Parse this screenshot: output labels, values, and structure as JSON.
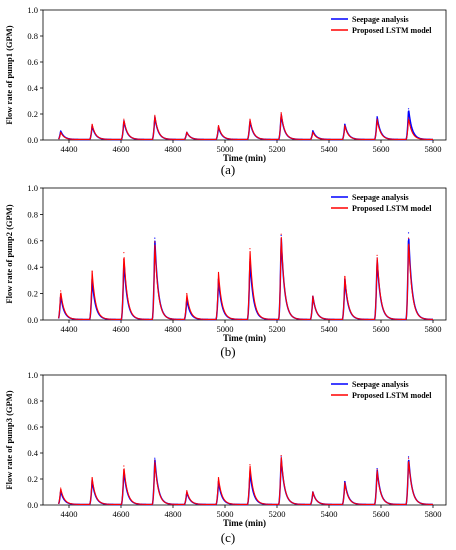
{
  "chart_data": [
    {
      "type": "line",
      "panel": "(a)",
      "xlabel": "Time (min)",
      "ylabel": "Flow rate of pump1 (GPM)",
      "xlim": [
        4300,
        5850
      ],
      "ylim": [
        0,
        1.0
      ],
      "xticks": [
        4400,
        4600,
        4800,
        5000,
        5200,
        5400,
        5600,
        5800
      ],
      "yticks": [
        0.0,
        0.2,
        0.4,
        0.6,
        0.8,
        1.0
      ],
      "legend_position": "top-right",
      "series": [
        {
          "name": "Seepage analysis",
          "color": "#0000ff",
          "x": [
            4368,
            4489,
            4611,
            4730,
            4853,
            4975,
            5096,
            5216,
            5338,
            5461,
            5585,
            5706
          ],
          "peaks": [
            0.07,
            0.11,
            0.15,
            0.18,
            0.06,
            0.1,
            0.15,
            0.2,
            0.07,
            0.12,
            0.18,
            0.24
          ]
        },
        {
          "name": "Proposed LSTM model",
          "color": "#ff0000",
          "x": [
            4368,
            4489,
            4611,
            4730,
            4853,
            4975,
            5096,
            5216,
            5338,
            5461,
            5585,
            5706
          ],
          "peaks": [
            0.06,
            0.12,
            0.16,
            0.19,
            0.06,
            0.11,
            0.16,
            0.21,
            0.06,
            0.11,
            0.16,
            0.17
          ]
        }
      ]
    },
    {
      "type": "line",
      "panel": "(b)",
      "xlabel": "Time (min)",
      "ylabel": "Flow rate of pump2 (GPM)",
      "xlim": [
        4300,
        5850
      ],
      "ylim": [
        0,
        1.0
      ],
      "xticks": [
        4400,
        4600,
        4800,
        5000,
        5200,
        5400,
        5600,
        5800
      ],
      "yticks": [
        0.0,
        0.2,
        0.4,
        0.6,
        0.8,
        1.0
      ],
      "legend_position": "top-right",
      "series": [
        {
          "name": "Seepage analysis",
          "color": "#0000ff",
          "x": [
            4368,
            4489,
            4611,
            4730,
            4853,
            4975,
            5096,
            5216,
            5338,
            5461,
            5585,
            5706
          ],
          "peaks": [
            0.19,
            0.31,
            0.46,
            0.62,
            0.16,
            0.31,
            0.46,
            0.64,
            0.18,
            0.31,
            0.47,
            0.66
          ]
        },
        {
          "name": "Proposed LSTM model",
          "color": "#ff0000",
          "x": [
            4368,
            4489,
            4611,
            4730,
            4853,
            4975,
            5096,
            5216,
            5338,
            5461,
            5585,
            5706
          ],
          "peaks": [
            0.22,
            0.37,
            0.51,
            0.59,
            0.2,
            0.36,
            0.54,
            0.65,
            0.18,
            0.33,
            0.49,
            0.62
          ]
        }
      ]
    },
    {
      "type": "line",
      "panel": "(c)",
      "xlabel": "Time (min)",
      "ylabel": "Flow rate of pump3 (GPM)",
      "xlim": [
        4300,
        5850
      ],
      "ylim": [
        0,
        1.0
      ],
      "xticks": [
        4400,
        4600,
        4800,
        5000,
        5200,
        5400,
        5600,
        5800
      ],
      "yticks": [
        0.0,
        0.2,
        0.4,
        0.6,
        0.8,
        1.0
      ],
      "legend_position": "top-right",
      "series": [
        {
          "name": "Seepage analysis",
          "color": "#0000ff",
          "x": [
            4368,
            4489,
            4611,
            4730,
            4853,
            4975,
            5096,
            5216,
            5338,
            5461,
            5585,
            5706
          ],
          "peaks": [
            0.11,
            0.19,
            0.27,
            0.36,
            0.1,
            0.18,
            0.26,
            0.37,
            0.1,
            0.18,
            0.28,
            0.37
          ]
        },
        {
          "name": "Proposed LSTM model",
          "color": "#ff0000",
          "x": [
            4368,
            4489,
            4611,
            4730,
            4853,
            4975,
            5096,
            5216,
            5338,
            5461,
            5585,
            5706
          ],
          "peaks": [
            0.13,
            0.21,
            0.3,
            0.34,
            0.11,
            0.21,
            0.31,
            0.38,
            0.1,
            0.17,
            0.27,
            0.36
          ]
        }
      ]
    }
  ]
}
